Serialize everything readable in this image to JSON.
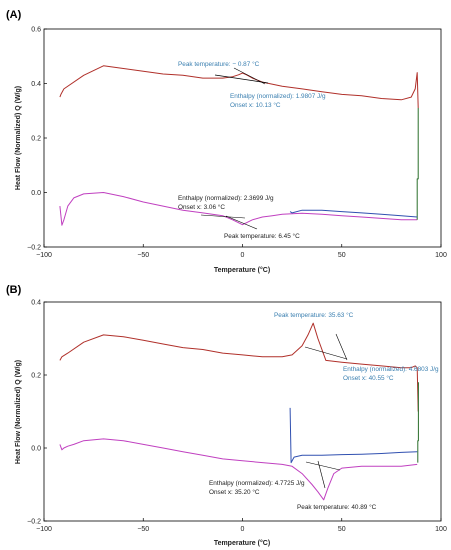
{
  "chart_data": [
    {
      "type": "line",
      "panel_label": "(A)",
      "xlabel": "Temperature (°C)",
      "ylabel": "Heat Flow (Normalized) Q (W/g)",
      "xlim": [
        -100,
        100
      ],
      "ylim": [
        -0.2,
        0.6
      ],
      "xticks": [
        "−100",
        "−50",
        "0",
        "50",
        "100"
      ],
      "yticks": [
        "−0.2",
        "0.0",
        "0.2",
        "0.4",
        "0.6"
      ],
      "series": [
        {
          "color": "#b0302a",
          "x": [
            -92,
            -91.5,
            -90,
            -80,
            -70,
            -60,
            -50,
            -40,
            -30,
            -20,
            -10,
            -5,
            -2,
            0,
            2,
            5,
            10,
            20,
            30,
            40,
            50,
            60,
            70,
            80,
            85,
            87,
            88,
            88.5
          ],
          "y": [
            0.35,
            0.36,
            0.38,
            0.43,
            0.465,
            0.455,
            0.445,
            0.435,
            0.43,
            0.42,
            0.42,
            0.425,
            0.432,
            0.438,
            0.432,
            0.42,
            0.405,
            0.39,
            0.38,
            0.37,
            0.36,
            0.355,
            0.345,
            0.34,
            0.35,
            0.38,
            0.44,
            0.31
          ]
        },
        {
          "color": "#c040c0",
          "x": [
            -92,
            -91,
            -90,
            -88,
            -85,
            -80,
            -70,
            -60,
            -50,
            -40,
            -30,
            -20,
            -10,
            -5,
            0,
            5,
            10,
            15,
            20,
            25,
            30,
            40,
            50,
            60,
            70,
            80,
            88
          ],
          "y": [
            -0.05,
            -0.12,
            -0.1,
            -0.05,
            -0.02,
            -0.005,
            0.0,
            -0.015,
            -0.035,
            -0.05,
            -0.065,
            -0.075,
            -0.085,
            -0.1,
            -0.118,
            -0.1,
            -0.09,
            -0.085,
            -0.08,
            -0.078,
            -0.076,
            -0.08,
            -0.085,
            -0.09,
            -0.095,
            -0.1,
            -0.1
          ]
        },
        {
          "color": "#2a6e2a",
          "x": [
            88,
            88,
            88.5,
            88.5
          ],
          "y": [
            -0.1,
            0.05,
            0.05,
            0.31
          ]
        },
        {
          "color": "#3050b0",
          "x": [
            24,
            25,
            30,
            40,
            50,
            60,
            70,
            80,
            88
          ],
          "y": [
            -0.07,
            -0.075,
            -0.065,
            -0.065,
            -0.07,
            -0.075,
            -0.08,
            -0.085,
            -0.09
          ]
        }
      ],
      "annotations": [
        {
          "text": "Peak temperature: − 0.87 °C",
          "color": "#3a7fb0"
        },
        {
          "text": "Enthalpy (normalized): 1.9807 J/g",
          "color": "#3a7fb0"
        },
        {
          "text": "Onset x: 10.13 °C",
          "color": "#3a7fb0"
        },
        {
          "text": "Enthalpy (normalized): 2.3699 J/g",
          "color": "#222222"
        },
        {
          "text": "Onset x: 3.06 °C",
          "color": "#222222"
        },
        {
          "text": "Peak temperature: 6.45 °C",
          "color": "#222222"
        }
      ]
    },
    {
      "type": "line",
      "panel_label": "(B)",
      "xlabel": "Temperature (°C)",
      "ylabel": "Heat Flow (Normalized) Q (W/g)",
      "xlim": [
        -100,
        100
      ],
      "ylim": [
        -0.2,
        0.4
      ],
      "xticks": [
        "−100",
        "−50",
        "0",
        "50",
        "100"
      ],
      "yticks": [
        "−0.2",
        "0.0",
        "0.2",
        "0.4"
      ],
      "series": [
        {
          "color": "#b0302a",
          "x": [
            -92,
            -91,
            -88,
            -80,
            -70,
            -60,
            -50,
            -40,
            -30,
            -20,
            -10,
            0,
            10,
            20,
            25,
            30,
            33,
            35.6,
            38,
            42,
            50,
            60,
            70,
            80,
            85,
            87,
            88,
            88.5
          ],
          "y": [
            0.24,
            0.25,
            0.26,
            0.29,
            0.31,
            0.305,
            0.295,
            0.285,
            0.275,
            0.27,
            0.26,
            0.255,
            0.25,
            0.25,
            0.255,
            0.28,
            0.31,
            0.342,
            0.3,
            0.24,
            0.235,
            0.23,
            0.225,
            0.22,
            0.22,
            0.225,
            0.22,
            0.1
          ]
        },
        {
          "color": "#c040c0",
          "x": [
            -92,
            -91,
            -90,
            -88,
            -85,
            -80,
            -70,
            -60,
            -50,
            -40,
            -30,
            -20,
            -10,
            0,
            10,
            20,
            25,
            30,
            35,
            38,
            40.9,
            43,
            46,
            50,
            60,
            70,
            80,
            88
          ],
          "y": [
            0.01,
            -0.005,
            0.0,
            0.005,
            0.01,
            0.02,
            0.025,
            0.02,
            0.01,
            0.0,
            -0.01,
            -0.02,
            -0.03,
            -0.035,
            -0.04,
            -0.045,
            -0.05,
            -0.07,
            -0.1,
            -0.12,
            -0.142,
            -0.11,
            -0.07,
            -0.055,
            -0.05,
            -0.05,
            -0.05,
            -0.045
          ]
        },
        {
          "color": "#2a6e2a",
          "x": [
            88.3,
            88.3,
            88.6,
            88.6
          ],
          "y": [
            -0.04,
            0.02,
            0.02,
            0.18
          ]
        },
        {
          "color": "#3050b0",
          "x": [
            24,
            24.5,
            26,
            30,
            40,
            50,
            60,
            70,
            80,
            88
          ],
          "y": [
            0.11,
            -0.04,
            -0.025,
            -0.02,
            -0.02,
            -0.018,
            -0.017,
            -0.015,
            -0.012,
            -0.01
          ]
        }
      ],
      "annotations": [
        {
          "text": "Peak temperature: 35.63 °C",
          "color": "#3a7fb0"
        },
        {
          "text": "Enthalpy (normalized): 4.6803 J/g",
          "color": "#3a7fb0"
        },
        {
          "text": "Onset x: 40.55 °C",
          "color": "#3a7fb0"
        },
        {
          "text": "Enthalpy (normalized): 4.7725 J/g",
          "color": "#222222"
        },
        {
          "text": "Onset x: 35.20 °C",
          "color": "#222222"
        },
        {
          "text": "Peak temperature: 40.89 °C",
          "color": "#222222"
        }
      ]
    }
  ]
}
